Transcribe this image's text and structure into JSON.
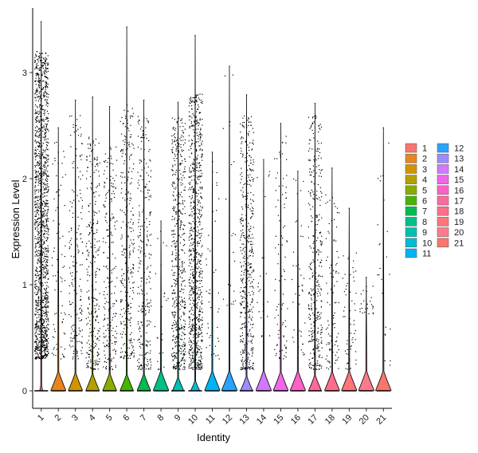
{
  "chart_data": {
    "type": "violin",
    "xlabel": "Identity",
    "ylabel": "Expression Level",
    "ylim": [
      -0.15,
      3.55
    ],
    "y_ticks": [
      0,
      1,
      2,
      3
    ],
    "categories": [
      "1",
      "2",
      "3",
      "4",
      "5",
      "6",
      "7",
      "8",
      "9",
      "10",
      "11",
      "12",
      "13",
      "14",
      "15",
      "16",
      "17",
      "18",
      "19",
      "20",
      "21"
    ],
    "colors": [
      "#F8766D",
      "#E7851E",
      "#D09400",
      "#B2A100",
      "#89AC00",
      "#45B500",
      "#00BC51",
      "#00C087",
      "#00C0B2",
      "#00BCD6",
      "#00B3F2",
      "#29A3FF",
      "#9C8DFF",
      "#D277FF",
      "#F166E8",
      "#FF61C7",
      "#FF689E",
      "#FF6E8A",
      "#FF7676",
      "#FB7B8A",
      "#F8766D"
    ],
    "series": [
      {
        "category": "1",
        "max": 3.48,
        "zero_fraction": 0.18,
        "nonzero_range": [
          0.3,
          3.2
        ]
      },
      {
        "category": "2",
        "max": 2.48,
        "zero_fraction": 0.96,
        "nonzero_range": [
          0.3,
          2.4
        ]
      },
      {
        "category": "3",
        "max": 2.74,
        "zero_fraction": 0.9,
        "nonzero_range": [
          0.3,
          2.6
        ]
      },
      {
        "category": "4",
        "max": 2.77,
        "zero_fraction": 0.85,
        "nonzero_range": [
          0.2,
          2.4
        ]
      },
      {
        "category": "5",
        "max": 2.68,
        "zero_fraction": 0.88,
        "nonzero_range": [
          0.2,
          2.3
        ]
      },
      {
        "category": "6",
        "max": 3.43,
        "zero_fraction": 0.84,
        "nonzero_range": [
          0.3,
          2.7
        ]
      },
      {
        "category": "7",
        "max": 2.74,
        "zero_fraction": 0.85,
        "nonzero_range": [
          0.2,
          2.6
        ]
      },
      {
        "category": "8",
        "max": 1.6,
        "zero_fraction": 0.99,
        "nonzero_range": [
          0.2,
          1.6
        ]
      },
      {
        "category": "9",
        "max": 2.72,
        "zero_fraction": 0.7,
        "nonzero_range": [
          0.2,
          2.6
        ]
      },
      {
        "category": "10",
        "max": 3.35,
        "zero_fraction": 0.55,
        "nonzero_range": [
          0.2,
          2.8
        ]
      },
      {
        "category": "11",
        "max": 2.25,
        "zero_fraction": 0.98,
        "nonzero_range": [
          0.3,
          2.2
        ]
      },
      {
        "category": "12",
        "max": 3.06,
        "zero_fraction": 0.99,
        "nonzero_range": [
          0.8,
          3.0
        ]
      },
      {
        "category": "13",
        "max": 2.79,
        "zero_fraction": 0.75,
        "nonzero_range": [
          0.2,
          2.6
        ]
      },
      {
        "category": "14",
        "max": 2.18,
        "zero_fraction": 0.99,
        "nonzero_range": [
          0.5,
          2.1
        ]
      },
      {
        "category": "15",
        "max": 2.52,
        "zero_fraction": 0.95,
        "nonzero_range": [
          0.3,
          2.4
        ]
      },
      {
        "category": "16",
        "max": 2.07,
        "zero_fraction": 0.98,
        "nonzero_range": [
          0.3,
          2.0
        ]
      },
      {
        "category": "17",
        "max": 2.71,
        "zero_fraction": 0.8,
        "nonzero_range": [
          0.2,
          2.6
        ]
      },
      {
        "category": "18",
        "max": 2.1,
        "zero_fraction": 0.95,
        "nonzero_range": [
          0.2,
          1.9
        ]
      },
      {
        "category": "19",
        "max": 1.72,
        "zero_fraction": 0.97,
        "nonzero_range": [
          0.2,
          1.3
        ]
      },
      {
        "category": "20",
        "max": 1.07,
        "zero_fraction": 0.99,
        "nonzero_range": [
          0.7,
          1.0
        ]
      },
      {
        "category": "21",
        "max": 2.48,
        "zero_fraction": 0.99,
        "nonzero_range": [
          0.2,
          2.4
        ]
      }
    ],
    "legend": {
      "placement": "right",
      "entries": [
        "1",
        "2",
        "3",
        "4",
        "5",
        "6",
        "7",
        "8",
        "9",
        "10",
        "11",
        "12",
        "13",
        "14",
        "15",
        "16",
        "17",
        "18",
        "19",
        "20",
        "21"
      ]
    }
  }
}
